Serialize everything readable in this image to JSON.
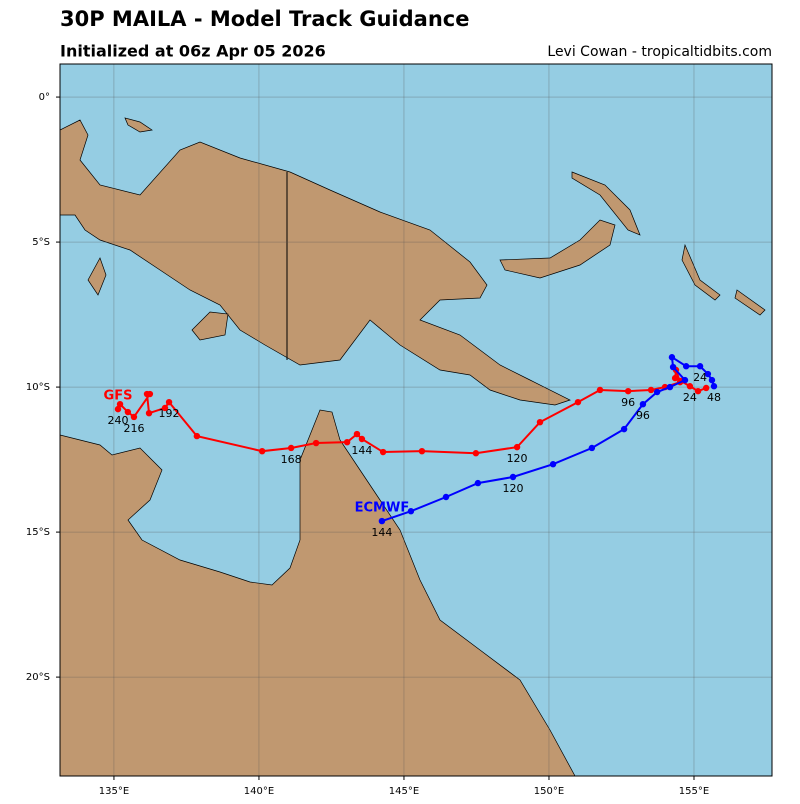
{
  "chart_data": {
    "type": "track",
    "title": "30P MAILA - Model Track Guidance",
    "subtitle": "Initialized at 06z Apr 05 2026",
    "credit": "Levi Cowan - tropicaltidbits.com",
    "xlim": [
      133.14,
      157.69
    ],
    "ylim": [
      -23.41,
      1.14
    ],
    "xticks": [
      {
        "value": 135,
        "label": "135°E"
      },
      {
        "value": 140,
        "label": "140°E"
      },
      {
        "value": 145,
        "label": "145°E"
      },
      {
        "value": 150,
        "label": "150°E"
      },
      {
        "value": 155,
        "label": "155°E"
      }
    ],
    "yticks": [
      {
        "value": 0,
        "label": "0°"
      },
      {
        "value": -5,
        "label": "5°S"
      },
      {
        "value": -10,
        "label": "10°S"
      },
      {
        "value": -15,
        "label": "15°S"
      },
      {
        "value": -20,
        "label": "20°S"
      }
    ],
    "grid": true,
    "series": [
      {
        "name": "GFS",
        "color": "#ff0000",
        "x": [
          155.42,
          155.14,
          154.86,
          154.55,
          154.35,
          154.38,
          154.52,
          154.0,
          153.52,
          152.73,
          151.76,
          151.0,
          149.69,
          148.9,
          147.48,
          145.62,
          144.28,
          143.55,
          143.38,
          143.04,
          141.97,
          141.11,
          140.11,
          137.86,
          136.9,
          136.76,
          136.21,
          136.14,
          136.24,
          135.69,
          135.48,
          135.21,
          135.14
        ],
        "values": [
          -10.03,
          -10.14,
          -9.97,
          -9.79,
          -9.69,
          -9.41,
          -9.83,
          -10.0,
          -10.1,
          -10.14,
          -10.1,
          -10.52,
          -11.21,
          -12.07,
          -12.28,
          -12.21,
          -12.24,
          -11.79,
          -11.62,
          -11.9,
          -11.93,
          -12.1,
          -12.21,
          -11.69,
          -10.52,
          -10.72,
          -10.9,
          -10.24,
          -10.24,
          -11.03,
          -10.86,
          -10.59,
          -10.76
        ],
        "point_labels": [
          null,
          null,
          "24",
          null,
          null,
          null,
          null,
          null,
          null,
          "96",
          null,
          null,
          null,
          "120",
          null,
          null,
          null,
          "144",
          null,
          null,
          null,
          "168",
          null,
          null,
          "192",
          null,
          null,
          null,
          null,
          "216",
          null,
          null,
          "240"
        ]
      },
      {
        "name": "ECMWF",
        "color": "#0000ff",
        "x": [
          155.69,
          155.62,
          155.48,
          155.21,
          154.73,
          154.24,
          154.28,
          154.69,
          154.17,
          153.73,
          153.24,
          152.59,
          151.48,
          150.14,
          148.76,
          147.55,
          146.45,
          145.24,
          144.24
        ],
        "values": [
          -9.97,
          -9.76,
          -9.55,
          -9.28,
          -9.28,
          -8.97,
          -9.31,
          -9.76,
          -10.0,
          -10.17,
          -10.59,
          -11.45,
          -12.1,
          -12.66,
          -13.1,
          -13.31,
          -13.79,
          -14.28,
          -14.62
        ],
        "point_labels": [
          "48",
          null,
          null,
          "24",
          null,
          null,
          null,
          null,
          null,
          null,
          "96",
          null,
          null,
          null,
          "120",
          null,
          null,
          null,
          "144"
        ]
      }
    ]
  }
}
